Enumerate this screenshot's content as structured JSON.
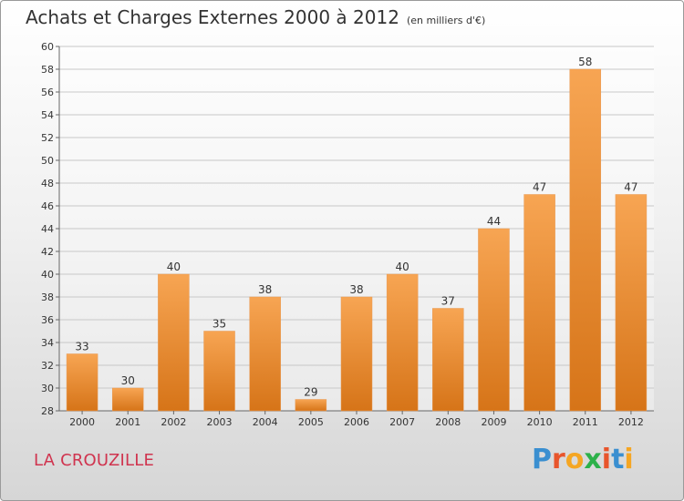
{
  "title": "Achats et Charges Externes 2000 à 2012",
  "unit": "(en milliers d'€)",
  "place": "LA CROUZILLE",
  "logo": {
    "letters": [
      "P",
      "r",
      "o",
      "x",
      "i",
      "t",
      "i"
    ],
    "colors": [
      "#3a8fd0",
      "#e8552c",
      "#f5a623",
      "#2db14a",
      "#e8552c",
      "#3a8fd0",
      "#f5a623"
    ]
  },
  "colors": {
    "bar_top": "#f7a553",
    "bar_bottom": "#d67418",
    "place": "#d0344f"
  },
  "chart_data": {
    "type": "bar",
    "title": "Achats et Charges Externes 2000 à 2012",
    "categories": [
      "2000",
      "2001",
      "2002",
      "2003",
      "2004",
      "2005",
      "2006",
      "2007",
      "2008",
      "2009",
      "2010",
      "2011",
      "2012"
    ],
    "values": [
      33,
      30,
      40,
      35,
      38,
      29,
      38,
      40,
      37,
      44,
      47,
      58,
      47
    ],
    "ylim": [
      28,
      60
    ],
    "yticks": [
      28,
      30,
      32,
      34,
      36,
      38,
      40,
      42,
      44,
      46,
      48,
      50,
      52,
      54,
      56,
      58,
      60
    ],
    "grid": true,
    "xlabel": "",
    "ylabel": ""
  }
}
